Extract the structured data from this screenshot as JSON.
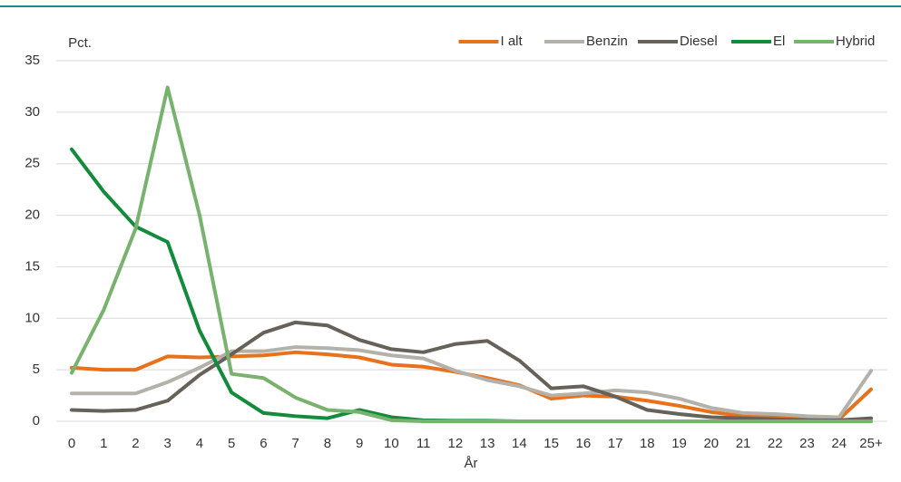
{
  "chart_data": {
    "type": "line",
    "y_label": "Pct.",
    "x_label": "År",
    "categories": [
      "0",
      "1",
      "2",
      "3",
      "4",
      "5",
      "6",
      "7",
      "8",
      "9",
      "10",
      "11",
      "12",
      "13",
      "14",
      "15",
      "16",
      "17",
      "18",
      "19",
      "20",
      "21",
      "22",
      "23",
      "24",
      "25+"
    ],
    "series": [
      {
        "name": "I alt",
        "color": "#e8711c",
        "values": [
          5.2,
          5.0,
          5.0,
          6.3,
          6.2,
          6.3,
          6.4,
          6.7,
          6.5,
          6.2,
          5.5,
          5.3,
          4.8,
          4.2,
          3.5,
          2.2,
          2.5,
          2.4,
          2.0,
          1.5,
          0.9,
          0.5,
          0.4,
          0.2,
          0.2,
          3.1
        ]
      },
      {
        "name": "Benzin",
        "color": "#b3b1a9",
        "values": [
          2.7,
          2.7,
          2.7,
          3.8,
          5.2,
          6.8,
          6.8,
          7.2,
          7.1,
          6.9,
          6.4,
          6.1,
          4.9,
          4.0,
          3.4,
          2.5,
          2.7,
          3.0,
          2.8,
          2.2,
          1.3,
          0.8,
          0.7,
          0.5,
          0.4,
          4.9
        ]
      },
      {
        "name": "Diesel",
        "color": "#676259",
        "values": [
          1.1,
          1.0,
          1.1,
          2.0,
          4.5,
          6.5,
          8.6,
          9.6,
          9.3,
          7.9,
          7.0,
          6.7,
          7.5,
          7.8,
          5.9,
          3.2,
          3.4,
          2.4,
          1.1,
          0.7,
          0.4,
          0.3,
          0.2,
          0.1,
          0.1,
          0.3
        ]
      },
      {
        "name": "El",
        "color": "#138a3c",
        "values": [
          26.4,
          22.3,
          18.9,
          17.4,
          8.8,
          2.8,
          0.8,
          0.5,
          0.3,
          1.1,
          0.4,
          0.1,
          0.05,
          0.05,
          0,
          0,
          0,
          0,
          0,
          0,
          0,
          0,
          0,
          0,
          0,
          0
        ]
      },
      {
        "name": "Hybrid",
        "color": "#79b26f",
        "values": [
          4.7,
          10.8,
          18.7,
          32.4,
          20.0,
          4.6,
          4.2,
          2.3,
          1.1,
          0.9,
          0.1,
          0,
          0,
          0,
          0,
          0,
          0,
          0,
          0,
          0,
          0,
          0,
          0,
          0,
          0,
          0
        ]
      }
    ],
    "ylim": [
      0,
      35
    ],
    "yticks": [
      0,
      5,
      10,
      15,
      20,
      25,
      30,
      35
    ],
    "grid": true,
    "legend": "top-right"
  }
}
